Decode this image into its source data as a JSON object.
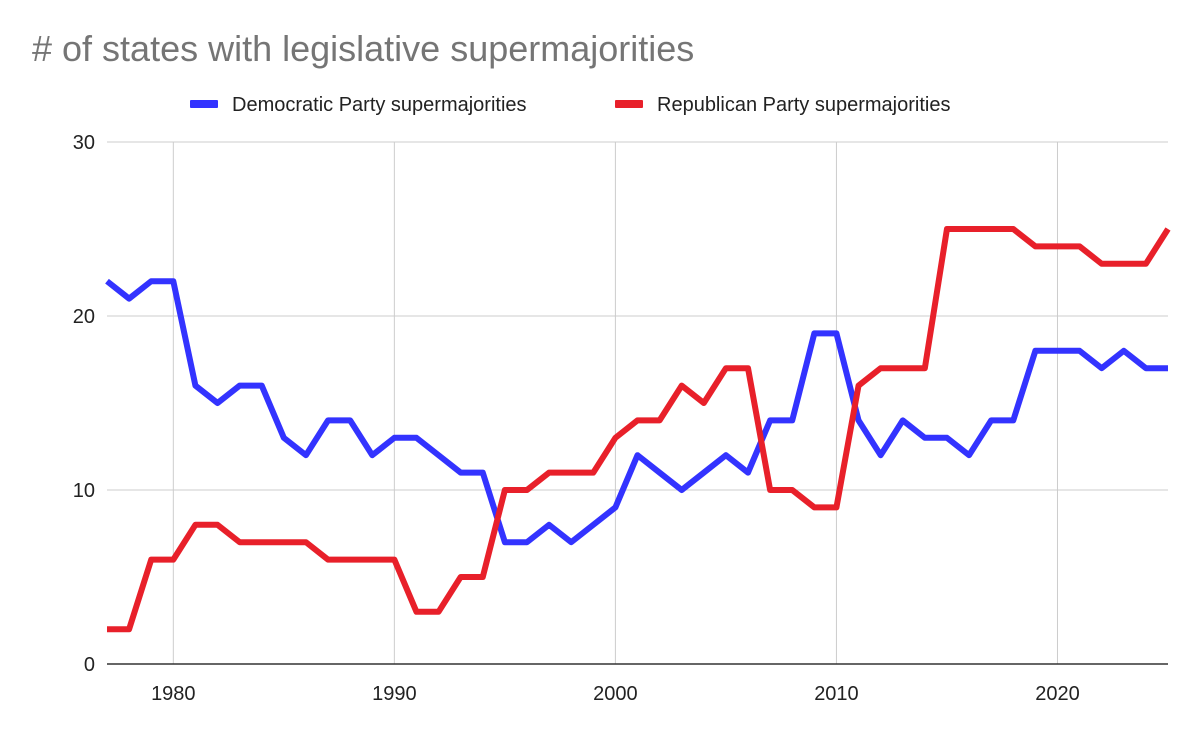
{
  "chart_data": {
    "type": "line",
    "title": "# of states with legislative supermajorities",
    "xlabel": "",
    "ylabel": "",
    "xlim": [
      1977,
      2025
    ],
    "ylim": [
      0,
      30
    ],
    "x_ticks": [
      1980,
      1990,
      2000,
      2010,
      2020
    ],
    "y_ticks": [
      0,
      10,
      20,
      30
    ],
    "grid": true,
    "legend_position": "top",
    "x": [
      1977,
      1978,
      1979,
      1980,
      1981,
      1982,
      1983,
      1984,
      1985,
      1986,
      1987,
      1988,
      1989,
      1990,
      1991,
      1992,
      1993,
      1994,
      1995,
      1996,
      1997,
      1998,
      1999,
      2000,
      2001,
      2002,
      2003,
      2004,
      2005,
      2006,
      2007,
      2008,
      2009,
      2010,
      2011,
      2012,
      2013,
      2014,
      2015,
      2016,
      2017,
      2018,
      2019,
      2020,
      2021,
      2022,
      2023,
      2024,
      2025
    ],
    "series": [
      {
        "name": "Democratic Party supermajorities",
        "color": "#3333ff",
        "values": [
          22,
          21,
          22,
          22,
          16,
          15,
          16,
          16,
          13,
          12,
          14,
          14,
          12,
          13,
          13,
          12,
          11,
          11,
          7,
          7,
          8,
          7,
          8,
          9,
          12,
          11,
          10,
          11,
          12,
          11,
          14,
          14,
          19,
          19,
          14,
          12,
          14,
          13,
          13,
          12,
          14,
          14,
          18,
          18,
          18,
          17,
          18,
          17,
          17
        ]
      },
      {
        "name": "Republican Party supermajorities",
        "color": "#e8202a",
        "values": [
          2,
          2,
          6,
          6,
          8,
          8,
          7,
          7,
          7,
          7,
          6,
          6,
          6,
          6,
          3,
          3,
          5,
          5,
          10,
          10,
          11,
          11,
          11,
          13,
          14,
          14,
          16,
          15,
          17,
          17,
          10,
          10,
          9,
          9,
          16,
          17,
          17,
          17,
          25,
          25,
          25,
          25,
          24,
          24,
          24,
          23,
          23,
          23,
          25
        ]
      }
    ]
  }
}
